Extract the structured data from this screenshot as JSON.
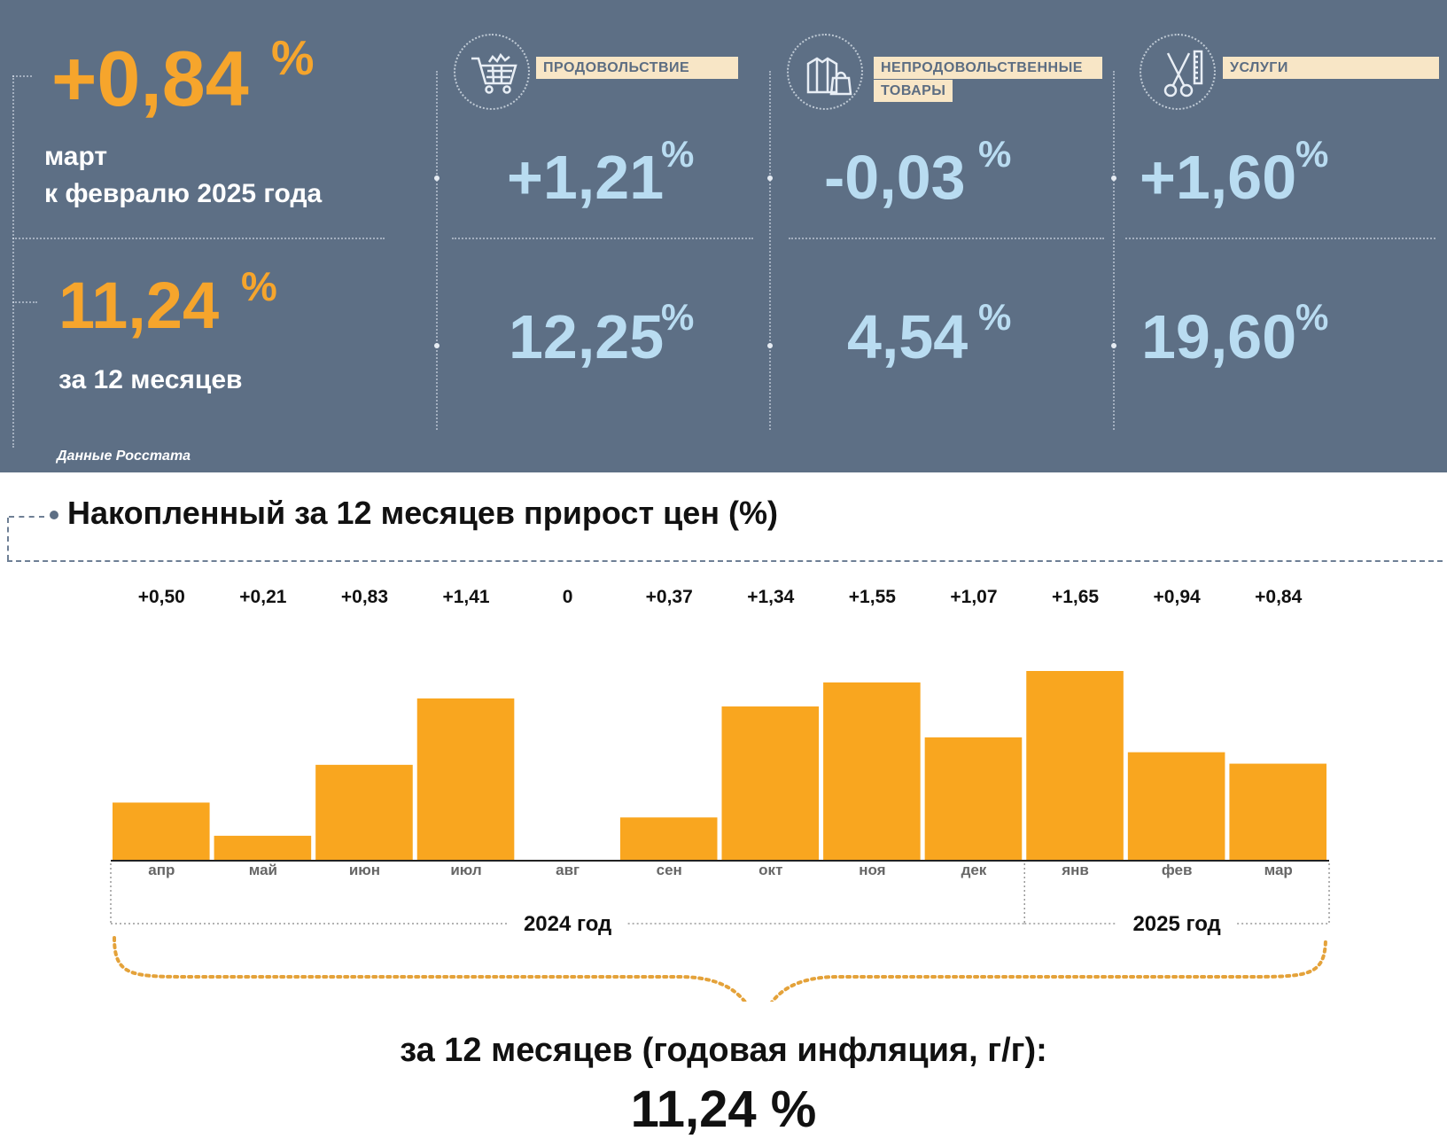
{
  "headline": {
    "month_change": "+0,84",
    "pct_sign": "%",
    "month_caption_1": "март",
    "month_caption_2": "к февралю 2025 года",
    "year_change": "11,24",
    "year_caption": "за 12 месяцев",
    "accent_color": "#f6a52c"
  },
  "categories": [
    {
      "icon": "shopping-cart-icon",
      "label_1": "ПРОДОВОЛЬСТВИЕ",
      "label_2": "",
      "month": "+1,21",
      "year": "12,25"
    },
    {
      "icon": "clothes-bag-icon",
      "label_1": "НЕПРОДОВОЛЬСТВЕННЫЕ",
      "label_2": "ТОВАРЫ",
      "month": "-0,03",
      "year": "4,54"
    },
    {
      "icon": "scissors-comb-icon",
      "label_1": "УСЛУГИ",
      "label_2": "",
      "month": "+1,60",
      "year": "19,60"
    }
  ],
  "source": "Данные Росстата",
  "chart_data": {
    "type": "bar",
    "title": "Накопленный за 12 месяцев прирост цен (%)",
    "categories": [
      "апр",
      "май",
      "июн",
      "июл",
      "авг",
      "сен",
      "окт",
      "ноя",
      "дек",
      "янв",
      "фев",
      "мар"
    ],
    "values": [
      0.5,
      0.21,
      0.83,
      1.41,
      0,
      0.37,
      1.34,
      1.55,
      1.07,
      1.65,
      0.94,
      0.84
    ],
    "data_labels": [
      "+0,50",
      "+0,21",
      "+0,83",
      "+1,41",
      "0",
      "+0,37",
      "+1,34",
      "+1,55",
      "+1,07",
      "+1,65",
      "+0,94",
      "+0,84"
    ],
    "year_groups": [
      {
        "label": "2024 год",
        "count": 9
      },
      {
        "label": "2025 год",
        "count": 3
      }
    ],
    "bar_color": "#f9a61f",
    "annual_label": "за 12 месяцев (годовая инфляция, г/г):",
    "annual_value": "11,24 %"
  }
}
